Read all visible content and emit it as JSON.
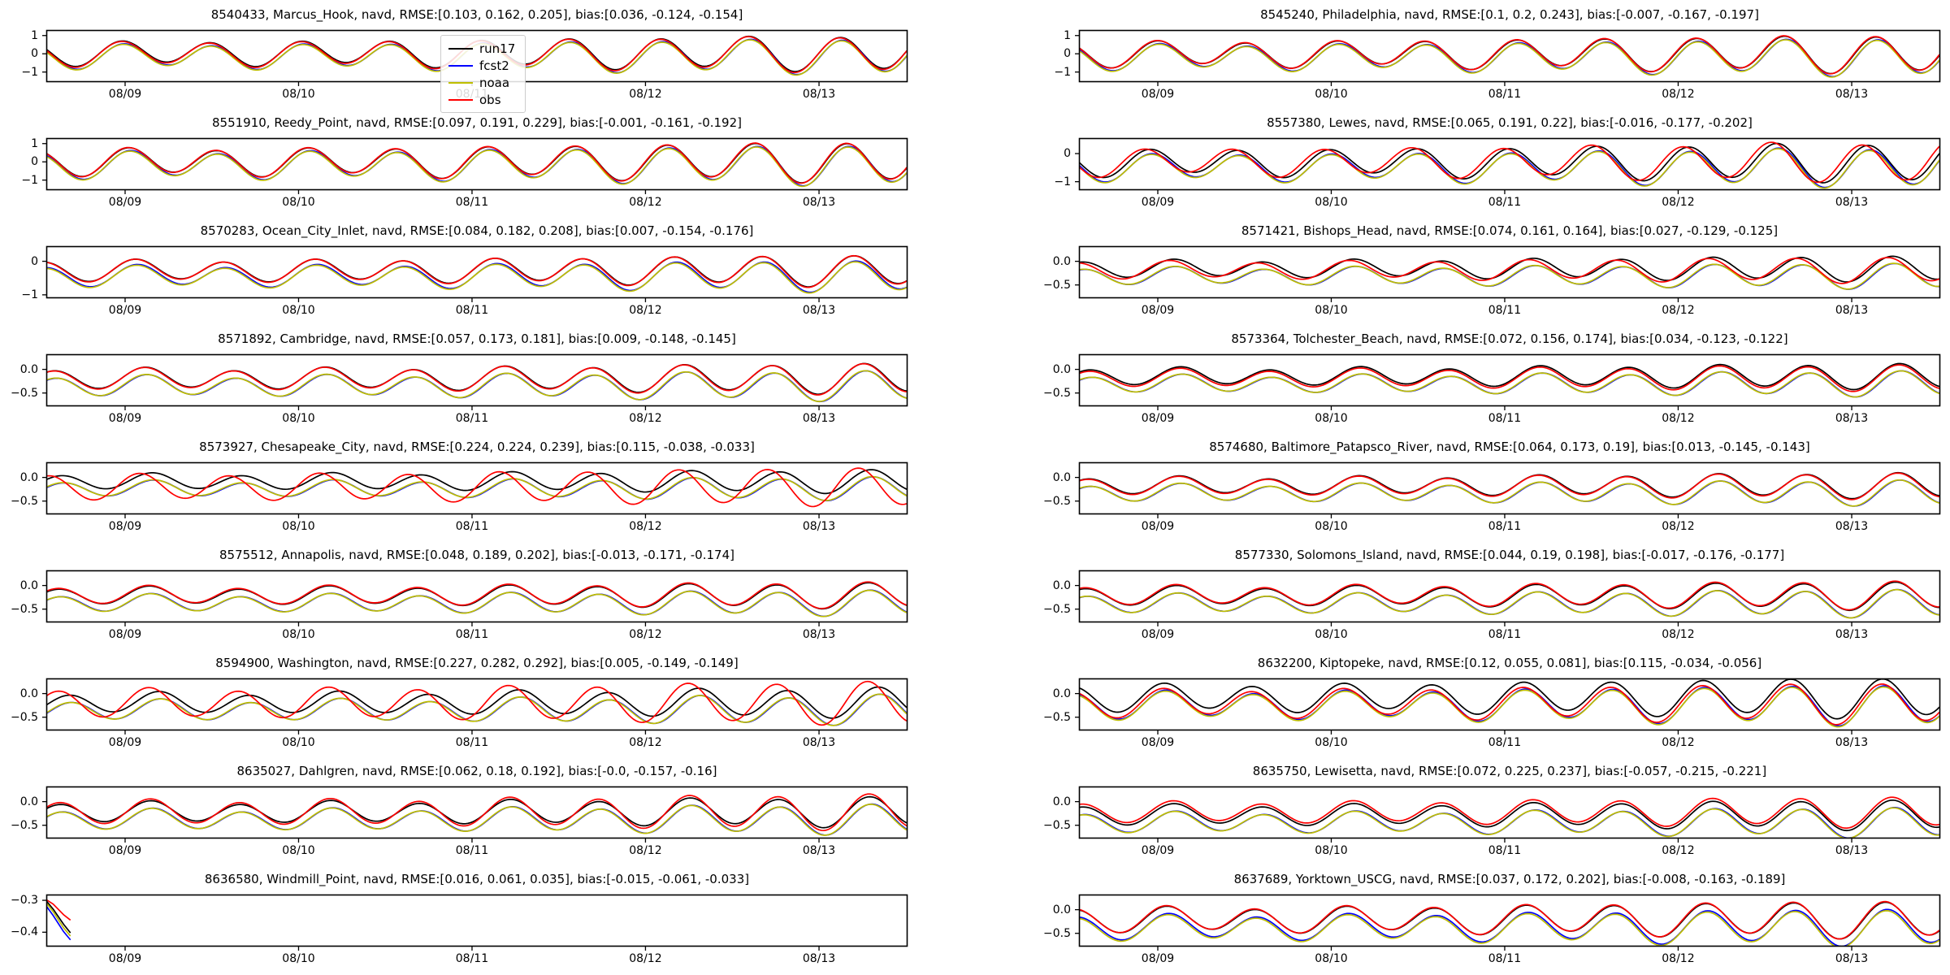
{
  "figure": {
    "background": "#ffffff"
  },
  "legend": {
    "entries": [
      {
        "label": "run17",
        "color": "#000000"
      },
      {
        "label": "fcst2",
        "color": "#0000ff"
      },
      {
        "label": "noaa",
        "color": "#bfbf00"
      },
      {
        "label": "obs",
        "color": "#ff0000"
      }
    ]
  },
  "xticklabels": [
    "08/09",
    "08/10",
    "08/11",
    "08/12",
    "08/13"
  ],
  "series_colors": {
    "run17": "#000000",
    "fcst2": "#0000ff",
    "noaa": "#bfbf00",
    "obs": "#ff0000"
  },
  "chart_data": [
    {
      "type": "line",
      "row": 0,
      "col": 0,
      "station_id": "8540433",
      "station_name": "Marcus_Hook",
      "datum": "navd",
      "rmse": [
        0.103,
        0.162,
        0.205
      ],
      "bias": [
        0.036,
        -0.124,
        -0.154
      ],
      "title": "8540433, Marcus_Hook, navd, RMSE:[0.103, 0.162, 0.205], bias:[0.036, -0.124, -0.154]",
      "ylim": [
        -1.55,
        1.3
      ],
      "yticks": [
        {
          "v": 1,
          "label": "1"
        },
        {
          "v": 0,
          "label": "0"
        },
        {
          "v": -1,
          "label": "−1"
        }
      ],
      "mean": 0.0,
      "amp": 0.8,
      "phase": 2.26
    },
    {
      "type": "line",
      "row": 0,
      "col": 1,
      "station_id": "8545240",
      "station_name": "Philadelphia",
      "datum": "navd",
      "rmse": [
        0.1,
        0.2,
        0.243
      ],
      "bias": [
        -0.007,
        -0.167,
        -0.197
      ],
      "title": "8545240, Philadelphia, navd, RMSE:[0.1, 0.2, 0.243], bias:[-0.007, -0.167, -0.197]",
      "ylim": [
        -1.55,
        1.3
      ],
      "yticks": [
        {
          "v": 1,
          "label": "1"
        },
        {
          "v": 0,
          "label": "0"
        },
        {
          "v": -1,
          "label": "−1"
        }
      ],
      "mean": 0.0,
      "amp": 0.85,
      "phase": 2.05
    },
    {
      "type": "line",
      "row": 1,
      "col": 0,
      "station_id": "8551910",
      "station_name": "Reedy_Point",
      "datum": "navd",
      "rmse": [
        0.097,
        0.191,
        0.229
      ],
      "bias": [
        -0.001,
        -0.161,
        -0.192
      ],
      "title": "8551910, Reedy_Point, navd, RMSE:[0.097, 0.191, 0.229], bias:[-0.001, -0.161, -0.192]",
      "ylim": [
        -1.55,
        1.3
      ],
      "yticks": [
        {
          "v": 1,
          "label": "1"
        },
        {
          "v": 0,
          "label": "0"
        },
        {
          "v": -1,
          "label": "−1"
        }
      ],
      "mean": 0.0,
      "amp": 0.9,
      "phase": 1.8
    },
    {
      "type": "line",
      "row": 1,
      "col": 1,
      "station_id": "8557380",
      "station_name": "Lewes",
      "datum": "navd",
      "rmse": [
        0.065,
        0.191,
        0.22
      ],
      "bias": [
        -0.016,
        -0.177,
        -0.202
      ],
      "title": "8557380, Lewes, navd, RMSE:[0.065, 0.191, 0.22], bias:[-0.016, -0.177, -0.202]",
      "ylim": [
        -1.3,
        0.55
      ],
      "yticks": [
        {
          "v": 0,
          "label": "0"
        },
        {
          "v": -1,
          "label": "−1"
        }
      ],
      "mean": -0.3,
      "amp": 0.58,
      "phase": 2.6,
      "obs_phase": 0.35
    },
    {
      "type": "line",
      "row": 2,
      "col": 0,
      "station_id": "8570283",
      "station_name": "Ocean_City_Inlet",
      "datum": "navd",
      "rmse": [
        0.084,
        0.182,
        0.208
      ],
      "bias": [
        0.007,
        -0.154,
        -0.176
      ],
      "title": "8570283, Ocean_City_Inlet, navd, RMSE:[0.084, 0.182, 0.208], bias:[0.007, -0.154, -0.176]",
      "ylim": [
        -1.1,
        0.45
      ],
      "yticks": [
        {
          "v": 0,
          "label": "0"
        },
        {
          "v": -1,
          "label": "−1"
        }
      ],
      "mean": -0.28,
      "amp": 0.38,
      "phase": 1.3
    },
    {
      "type": "line",
      "row": 2,
      "col": 1,
      "station_id": "8571421",
      "station_name": "Bishops_Head",
      "datum": "navd",
      "rmse": [
        0.074,
        0.161,
        0.164
      ],
      "bias": [
        0.027,
        -0.129,
        -0.125
      ],
      "title": "8571421, Bishops_Head, navd, RMSE:[0.074, 0.161, 0.164], bias:[0.027, -0.129, -0.125]",
      "ylim": [
        -0.78,
        0.32
      ],
      "yticks": [
        {
          "v": 0,
          "label": "0.0"
        },
        {
          "v": -0.5,
          "label": "−0.5"
        }
      ],
      "mean": -0.18,
      "amp": 0.22,
      "phase": 0.9,
      "obs_phase": 0.3
    },
    {
      "type": "line",
      "row": 3,
      "col": 0,
      "station_id": "8571892",
      "station_name": "Cambridge",
      "datum": "navd",
      "rmse": [
        0.057,
        0.173,
        0.181
      ],
      "bias": [
        0.009,
        -0.148,
        -0.145
      ],
      "title": "8571892, Cambridge, navd, RMSE:[0.057, 0.173, 0.181], bias:[0.009, -0.148, -0.145]",
      "ylim": [
        -0.78,
        0.32
      ],
      "yticks": [
        {
          "v": 0,
          "label": "0.0"
        },
        {
          "v": -0.5,
          "label": "−0.5"
        }
      ],
      "mean": -0.2,
      "amp": 0.26,
      "phase": 0.6
    },
    {
      "type": "line",
      "row": 3,
      "col": 1,
      "station_id": "8573364",
      "station_name": "Tolchester_Beach",
      "datum": "navd",
      "rmse": [
        0.072,
        0.156,
        0.174
      ],
      "bias": [
        0.034,
        -0.123,
        -0.122
      ],
      "title": "8573364, Tolchester_Beach, navd, RMSE:[0.072, 0.156, 0.174], bias:[0.034, -0.123, -0.122]",
      "ylim": [
        -0.78,
        0.32
      ],
      "yticks": [
        {
          "v": 0,
          "label": "0.0"
        },
        {
          "v": -0.5,
          "label": "−0.5"
        }
      ],
      "mean": -0.18,
      "amp": 0.22,
      "phase": 0.4
    },
    {
      "type": "line",
      "row": 4,
      "col": 0,
      "station_id": "8573927",
      "station_name": "Chesapeake_City",
      "datum": "navd",
      "rmse": [
        0.224,
        0.224,
        0.239
      ],
      "bias": [
        0.115,
        -0.038,
        -0.033
      ],
      "title": "8573927, Chesapeake_City, navd, RMSE:[0.224, 0.224, 0.239], bias:[0.115, -0.038, -0.033]",
      "ylim": [
        -0.78,
        0.32
      ],
      "yticks": [
        {
          "v": 0,
          "label": "0.0"
        },
        {
          "v": -0.5,
          "label": "−0.5"
        }
      ],
      "mean": -0.2,
      "amp": 0.2,
      "phase": 0.1,
      "obs_amp": 1.7,
      "obs_phase": 0.85
    },
    {
      "type": "line",
      "row": 4,
      "col": 1,
      "station_id": "8574680",
      "station_name": "Baltimore_Patapsco_River",
      "datum": "navd",
      "rmse": [
        0.064,
        0.173,
        0.19
      ],
      "bias": [
        0.013,
        -0.145,
        -0.143
      ],
      "title": "8574680, Baltimore_Patapsco_River, navd, RMSE:[0.064, 0.173, 0.19], bias:[0.013, -0.145, -0.143]",
      "ylim": [
        -0.78,
        0.32
      ],
      "yticks": [
        {
          "v": 0,
          "label": "0.0"
        },
        {
          "v": -0.5,
          "label": "−0.5"
        }
      ],
      "mean": -0.18,
      "amp": 0.22,
      "phase": 0.5
    },
    {
      "type": "line",
      "row": 5,
      "col": 0,
      "station_id": "8575512",
      "station_name": "Annapolis",
      "datum": "navd",
      "rmse": [
        0.048,
        0.189,
        0.202
      ],
      "bias": [
        -0.013,
        -0.171,
        -0.174
      ],
      "title": "8575512, Annapolis, navd, RMSE:[0.048, 0.189, 0.202], bias:[-0.013, -0.171, -0.174]",
      "ylim": [
        -0.78,
        0.32
      ],
      "yticks": [
        {
          "v": 0,
          "label": "0.0"
        },
        {
          "v": -0.5,
          "label": "−0.5"
        }
      ],
      "mean": -0.2,
      "amp": 0.22,
      "phase": 0.3
    },
    {
      "type": "line",
      "row": 5,
      "col": 1,
      "station_id": "8577330",
      "station_name": "Solomons_Island",
      "datum": "navd",
      "rmse": [
        0.044,
        0.19,
        0.198
      ],
      "bias": [
        -0.017,
        -0.176,
        -0.177
      ],
      "title": "8577330, Solomons_Island, navd, RMSE:[0.044, 0.19, 0.198], bias:[-0.017, -0.176, -0.177]",
      "ylim": [
        -0.78,
        0.32
      ],
      "yticks": [
        {
          "v": 0,
          "label": "0.0"
        },
        {
          "v": -0.5,
          "label": "−0.5"
        }
      ],
      "mean": -0.2,
      "amp": 0.24,
      "phase": 0.7
    },
    {
      "type": "line",
      "row": 6,
      "col": 0,
      "station_id": "8594900",
      "station_name": "Washington",
      "datum": "navd",
      "rmse": [
        0.227,
        0.282,
        0.292
      ],
      "bias": [
        0.005,
        -0.149,
        -0.149
      ],
      "title": "8594900, Washington, navd, RMSE:[0.227, 0.282, 0.292], bias:[0.005, -0.149, -0.149]",
      "ylim": [
        -0.78,
        0.32
      ],
      "yticks": [
        {
          "v": 0,
          "label": "0.0"
        },
        {
          "v": -0.5,
          "label": "−0.5"
        }
      ],
      "mean": -0.2,
      "amp": 0.26,
      "phase": -0.4,
      "obs_amp": 1.45,
      "obs_phase": 0.7
    },
    {
      "type": "line",
      "row": 6,
      "col": 1,
      "station_id": "8632200",
      "station_name": "Kiptopeke",
      "datum": "navd",
      "rmse": [
        0.12,
        0.055,
        0.081
      ],
      "bias": [
        0.115,
        -0.034,
        -0.056
      ],
      "title": "8632200, Kiptopeke, navd, RMSE:[0.12, 0.055, 0.081], bias:[0.115, -0.034, -0.056]",
      "ylim": [
        -0.78,
        0.32
      ],
      "yticks": [
        {
          "v": 0,
          "label": "0.0"
        },
        {
          "v": -0.5,
          "label": "−0.5"
        }
      ],
      "mean": -0.2,
      "amp": 0.35,
      "phase": 1.6
    },
    {
      "type": "line",
      "row": 7,
      "col": 0,
      "station_id": "8635027",
      "station_name": "Dahlgren",
      "datum": "navd",
      "rmse": [
        0.062,
        0.18,
        0.192
      ],
      "bias": [
        -0.0,
        -0.157,
        -0.16
      ],
      "title": "8635027, Dahlgren, navd, RMSE:[0.062, 0.18, 0.192], bias:[-0.0, -0.157, -0.16]",
      "ylim": [
        -0.78,
        0.32
      ],
      "yticks": [
        {
          "v": 0,
          "label": "0.0"
        },
        {
          "v": -0.5,
          "label": "−0.5"
        }
      ],
      "mean": -0.22,
      "amp": 0.26,
      "phase": 0.2,
      "obs_amp": 1.2
    },
    {
      "type": "line",
      "row": 7,
      "col": 1,
      "station_id": "8635750",
      "station_name": "Lewisetta",
      "datum": "navd",
      "rmse": [
        0.072,
        0.225,
        0.237
      ],
      "bias": [
        -0.057,
        -0.215,
        -0.221
      ],
      "title": "8635750, Lewisetta, navd, RMSE:[0.072, 0.225, 0.237], bias:[-0.057, -0.215, -0.221]",
      "ylim": [
        -0.78,
        0.32
      ],
      "yticks": [
        {
          "v": 0,
          "label": "0.0"
        },
        {
          "v": -0.5,
          "label": "−0.5"
        }
      ],
      "mean": -0.22,
      "amp": 0.26,
      "phase": 0.9
    },
    {
      "type": "line",
      "row": 8,
      "col": 0,
      "station_id": "8636580",
      "station_name": "Windmill_Point",
      "datum": "navd",
      "rmse": [
        0.016,
        0.061,
        0.035
      ],
      "bias": [
        -0.015,
        -0.061,
        -0.033
      ],
      "title": "8636580, Windmill_Point, navd, RMSE:[0.016, 0.061, 0.035], bias:[-0.015, -0.061, -0.033]",
      "ylim": [
        -0.445,
        -0.282
      ],
      "yticks": [
        {
          "v": -0.3,
          "label": "−0.3"
        },
        {
          "v": -0.4,
          "label": "−0.4"
        }
      ],
      "mean": -0.35,
      "amp": 0.05,
      "phase": 0.0,
      "partial": true,
      "partial_points": {
        "run17": [
          [
            0.0,
            -0.302
          ],
          [
            0.008,
            -0.328
          ],
          [
            0.02,
            -0.375
          ],
          [
            0.028,
            -0.402
          ]
        ],
        "fcst2": [
          [
            0.0,
            -0.318
          ],
          [
            0.008,
            -0.348
          ],
          [
            0.02,
            -0.398
          ],
          [
            0.028,
            -0.424
          ]
        ],
        "noaa": [
          [
            0.0,
            -0.308
          ],
          [
            0.008,
            -0.336
          ],
          [
            0.02,
            -0.386
          ],
          [
            0.028,
            -0.412
          ]
        ],
        "obs": [
          [
            0.0,
            -0.298
          ],
          [
            0.008,
            -0.312
          ],
          [
            0.02,
            -0.345
          ],
          [
            0.028,
            -0.362
          ]
        ]
      }
    },
    {
      "type": "line",
      "row": 8,
      "col": 1,
      "station_id": "8637689",
      "station_name": "Yorktown_USCG",
      "datum": "navd",
      "rmse": [
        0.037,
        0.172,
        0.202
      ],
      "bias": [
        -0.008,
        -0.163,
        -0.189
      ],
      "title": "8637689, Yorktown_USCG, navd, RMSE:[0.037, 0.172, 0.202], bias:[-0.008, -0.163, -0.189]",
      "ylim": [
        -0.78,
        0.32
      ],
      "yticks": [
        {
          "v": 0,
          "label": "0.0"
        },
        {
          "v": -0.5,
          "label": "−0.5"
        }
      ],
      "mean": -0.2,
      "amp": 0.32,
      "phase": 1.4
    }
  ]
}
